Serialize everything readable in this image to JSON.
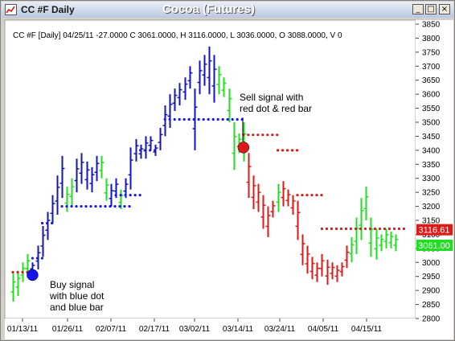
{
  "window": {
    "title": "CC #F Daily",
    "chart_title": "Cocoa (Futures)",
    "buttons": [
      "_",
      "□",
      "×"
    ]
  },
  "info_line": "CC #F [Daily] 04/25/11  -27.0000 C 3061.0000, H 3116.0000, L 3036.0000, O 3088.0000, V 0",
  "price_labels": {
    "top": "3116.61",
    "bottom": "3061.00"
  },
  "annotations": {
    "buy": [
      "Buy signal",
      "with blue dot",
      "and blue bar"
    ],
    "sell": [
      "Sell signal with",
      "red dot & red bar"
    ]
  },
  "colors": {
    "up": "#22dd22",
    "blue": "#1515b8",
    "red": "#dd1a1a",
    "dot_blue": "#1515ee",
    "label_red": "#dd1a1a",
    "label_green": "#22dd22"
  },
  "chart_data": {
    "type": "ohlc",
    "ylim": [
      2800,
      3850
    ],
    "yticks": [
      2800,
      2850,
      2900,
      2950,
      3000,
      3050,
      3100,
      3150,
      3200,
      3250,
      3300,
      3350,
      3400,
      3450,
      3500,
      3550,
      3600,
      3650,
      3700,
      3750,
      3800,
      3850
    ],
    "xticks": [
      "01/13/11",
      "01/26/11",
      "02/07/11",
      "02/17/11",
      "03/02/11",
      "03/14/11",
      "03/24/11",
      "04/05/11",
      "04/15/11"
    ],
    "bars": [
      {
        "c": "green",
        "h": 2960,
        "l": 2860
      },
      {
        "c": "green",
        "h": 2970,
        "l": 2880
      },
      {
        "c": "green",
        "h": 3000,
        "l": 2930
      },
      {
        "c": "green",
        "h": 3030,
        "l": 2950
      },
      {
        "c": "blue",
        "h": 3000,
        "l": 2965
      },
      {
        "c": "blue",
        "h": 3060,
        "l": 2975
      },
      {
        "c": "blue",
        "h": 3130,
        "l": 3020
      },
      {
        "c": "blue",
        "h": 3180,
        "l": 3080
      },
      {
        "c": "blue",
        "h": 3240,
        "l": 3140
      },
      {
        "c": "blue",
        "h": 3310,
        "l": 3170
      },
      {
        "c": "blue",
        "h": 3380,
        "l": 3230
      },
      {
        "c": "green",
        "h": 3270,
        "l": 3180
      },
      {
        "c": "green",
        "h": 3300,
        "l": 3200
      },
      {
        "c": "blue",
        "h": 3370,
        "l": 3250
      },
      {
        "c": "blue",
        "h": 3390,
        "l": 3280
      },
      {
        "c": "blue",
        "h": 3360,
        "l": 3260
      },
      {
        "c": "blue",
        "h": 3340,
        "l": 3250
      },
      {
        "c": "blue",
        "h": 3380,
        "l": 3290
      },
      {
        "c": "green",
        "h": 3380,
        "l": 3300
      },
      {
        "c": "green",
        "h": 3300,
        "l": 3220
      },
      {
        "c": "blue",
        "h": 3280,
        "l": 3200
      },
      {
        "c": "blue",
        "h": 3300,
        "l": 3230
      },
      {
        "c": "green",
        "h": 3260,
        "l": 3190
      },
      {
        "c": "blue",
        "h": 3300,
        "l": 3230
      },
      {
        "c": "blue",
        "h": 3410,
        "l": 3260
      },
      {
        "c": "blue",
        "h": 3440,
        "l": 3360
      },
      {
        "c": "blue",
        "h": 3420,
        "l": 3370
      },
      {
        "c": "blue",
        "h": 3450,
        "l": 3370
      },
      {
        "c": "blue",
        "h": 3450,
        "l": 3400
      },
      {
        "c": "blue",
        "h": 3420,
        "l": 3380
      },
      {
        "c": "blue",
        "h": 3480,
        "l": 3400
      },
      {
        "c": "blue",
        "h": 3560,
        "l": 3450
      },
      {
        "c": "blue",
        "h": 3600,
        "l": 3480
      },
      {
        "c": "blue",
        "h": 3620,
        "l": 3540
      },
      {
        "c": "blue",
        "h": 3640,
        "l": 3560
      },
      {
        "c": "blue",
        "h": 3660,
        "l": 3580
      },
      {
        "c": "blue",
        "h": 3700,
        "l": 3620
      },
      {
        "c": "blue",
        "h": 3620,
        "l": 3400
      },
      {
        "c": "blue",
        "h": 3720,
        "l": 3600
      },
      {
        "c": "blue",
        "h": 3740,
        "l": 3630
      },
      {
        "c": "blue",
        "h": 3770,
        "l": 3600
      },
      {
        "c": "blue",
        "h": 3740,
        "l": 3570
      },
      {
        "c": "green",
        "h": 3700,
        "l": 3600
      },
      {
        "c": "green",
        "h": 3660,
        "l": 3590
      },
      {
        "c": "green",
        "h": 3620,
        "l": 3500
      },
      {
        "c": "green",
        "h": 3500,
        "l": 3330
      },
      {
        "c": "green",
        "h": 3460,
        "l": 3390
      },
      {
        "c": "green",
        "h": 3500,
        "l": 3360
      },
      {
        "c": "red",
        "h": 3390,
        "l": 3230
      },
      {
        "c": "red",
        "h": 3310,
        "l": 3190
      },
      {
        "c": "red",
        "h": 3280,
        "l": 3180
      },
      {
        "c": "red",
        "h": 3240,
        "l": 3120
      },
      {
        "c": "red",
        "h": 3200,
        "l": 3090
      },
      {
        "c": "red",
        "h": 3220,
        "l": 3160
      },
      {
        "c": "green",
        "h": 3280,
        "l": 3180
      },
      {
        "c": "red",
        "h": 3290,
        "l": 3200
      },
      {
        "c": "red",
        "h": 3260,
        "l": 3200
      },
      {
        "c": "red",
        "h": 3240,
        "l": 3170
      },
      {
        "c": "red",
        "h": 3220,
        "l": 3080
      },
      {
        "c": "red",
        "h": 3100,
        "l": 2990
      },
      {
        "c": "red",
        "h": 3060,
        "l": 2960
      },
      {
        "c": "red",
        "h": 3020,
        "l": 2940
      },
      {
        "c": "red",
        "h": 3000,
        "l": 2930
      },
      {
        "c": "red",
        "h": 3030,
        "l": 2950
      },
      {
        "c": "red",
        "h": 3010,
        "l": 2920
      },
      {
        "c": "red",
        "h": 3000,
        "l": 2940
      },
      {
        "c": "red",
        "h": 2990,
        "l": 2930
      },
      {
        "c": "red",
        "h": 3000,
        "l": 2950
      },
      {
        "c": "red",
        "h": 3060,
        "l": 2980
      },
      {
        "c": "green",
        "h": 3090,
        "l": 3000
      },
      {
        "c": "green",
        "h": 3160,
        "l": 3030
      },
      {
        "c": "green",
        "h": 3230,
        "l": 3080
      },
      {
        "c": "green",
        "h": 3270,
        "l": 3150
      },
      {
        "c": "green",
        "h": 3160,
        "l": 3020
      },
      {
        "c": "green",
        "h": 3120,
        "l": 3010
      },
      {
        "c": "green",
        "h": 3100,
        "l": 3040
      },
      {
        "c": "green",
        "h": 3120,
        "l": 3050
      },
      {
        "c": "green",
        "h": 3110,
        "l": 3050
      },
      {
        "c": "green",
        "h": 3100,
        "l": 3040
      }
    ],
    "stops": [
      {
        "c": "red",
        "from": 0,
        "to": 3,
        "v": 2965
      },
      {
        "c": "blue",
        "from": 4,
        "to": 6,
        "v": 3015
      },
      {
        "c": "blue",
        "from": 6,
        "to": 8,
        "v": 3140
      },
      {
        "c": "blue",
        "from": 10,
        "to": 24,
        "v": 3200
      },
      {
        "c": "blue",
        "from": 21,
        "to": 26,
        "v": 3240
      },
      {
        "c": "blue",
        "from": 26,
        "to": 29,
        "v": 3400
      },
      {
        "c": "blue",
        "from": 31,
        "to": 47,
        "v": 3510
      },
      {
        "c": "red",
        "from": 47,
        "to": 54,
        "v": 3455
      },
      {
        "c": "red",
        "from": 54,
        "to": 58,
        "v": 3400
      },
      {
        "c": "red",
        "from": 58,
        "to": 63,
        "v": 3240
      },
      {
        "c": "red",
        "from": 63,
        "to": 80,
        "v": 3120
      }
    ],
    "signals": [
      {
        "type": "buy",
        "bar": 4,
        "v": 2955,
        "c": "blue"
      },
      {
        "type": "sell",
        "bar": 47,
        "v": 3410,
        "c": "red"
      }
    ]
  }
}
